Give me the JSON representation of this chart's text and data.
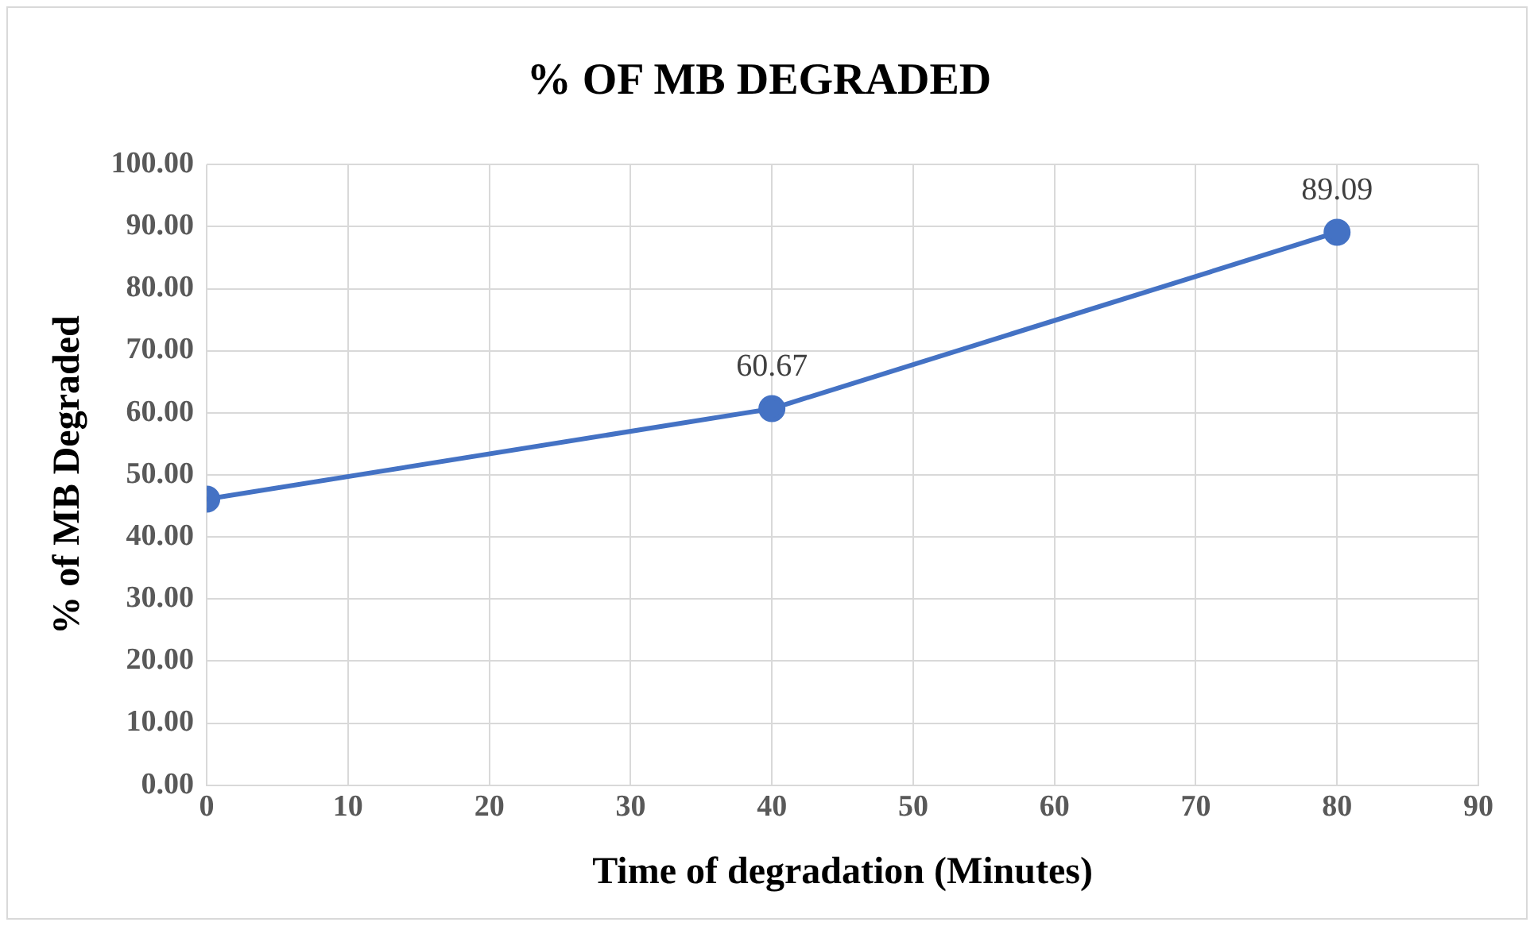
{
  "chart_data": {
    "type": "line",
    "title": "% OF MB DEGRADED",
    "xlabel": "Time of degradation (Minutes)",
    "ylabel": "% of MB Degraded",
    "x": [
      0,
      40,
      80
    ],
    "series": [
      {
        "color": "#4472c4",
        "values": [
          46.1,
          60.67,
          89.09
        ],
        "value_labels": [
          null,
          "60.67",
          "89.09"
        ]
      }
    ],
    "xlim": [
      0,
      90
    ],
    "xticks": [
      0,
      10,
      20,
      30,
      40,
      50,
      60,
      70,
      80,
      90
    ],
    "ylim": [
      0,
      100
    ],
    "yticks": [
      {
        "value": 0,
        "label": "0.00"
      },
      {
        "value": 10,
        "label": "10.00"
      },
      {
        "value": 20,
        "label": "20.00"
      },
      {
        "value": 30,
        "label": "30.00"
      },
      {
        "value": 40,
        "label": "40.00"
      },
      {
        "value": 50,
        "label": "50.00"
      },
      {
        "value": 60,
        "label": "60.00"
      },
      {
        "value": 70,
        "label": "70.00"
      },
      {
        "value": 80,
        "label": "80.00"
      },
      {
        "value": 90,
        "label": "90.00"
      },
      {
        "value": 100,
        "label": "100.00"
      }
    ],
    "grid": true,
    "legend": false,
    "marker": "circle",
    "line_style": "solid"
  }
}
